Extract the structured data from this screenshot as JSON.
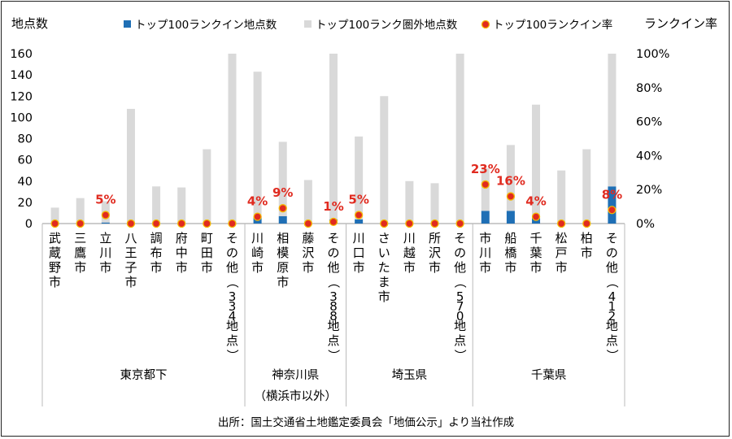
{
  "chart_data": {
    "type": "bar",
    "y_left_label": "地点数",
    "y_right_label": "ランクイン率",
    "y_left_ticks": [
      "0",
      "20",
      "40",
      "60",
      "80",
      "100",
      "120",
      "140",
      "160"
    ],
    "y_right_ticks": [
      "0%",
      "20%",
      "40%",
      "60%",
      "80%",
      "100%"
    ],
    "ylim": [
      0,
      160
    ],
    "y2lim": [
      0,
      1
    ],
    "legend": {
      "position": "top",
      "items": [
        {
          "label": "トップ100ランクイン地点数",
          "color": "#1f6fb5",
          "kind": "square"
        },
        {
          "label": "トップ100ランク圏外地点数",
          "color": "#d9d9d9",
          "kind": "square"
        },
        {
          "label": "トップ100ランクイン率",
          "color": "#e02b20",
          "kind": "dot"
        }
      ]
    },
    "colors": {
      "in": "#1f6fb5",
      "out": "#d9d9d9",
      "rate": "#e02b20",
      "rate_label": "#e02b20"
    },
    "categories": [
      "武蔵野市",
      "三鷹市",
      "立川市",
      "八王子市",
      "調布市",
      "府中市",
      "町田市",
      "その他（334地点）",
      "川崎市",
      "相模原市",
      "藤沢市",
      "その他（388地点）",
      "川口市",
      "さいたま市",
      "川越市",
      "所沢市",
      "その他（570地点）",
      "市川市",
      "船橋市",
      "千葉市",
      "松戸市",
      "柏市",
      "その他（412地点）"
    ],
    "series": [
      {
        "name": "トップ100ランクイン地点数",
        "values": [
          0,
          0,
          1,
          0,
          0,
          0,
          0,
          0,
          6,
          7,
          0,
          4,
          4,
          0,
          0,
          0,
          0,
          12,
          12,
          5,
          0,
          0,
          35
        ]
      },
      {
        "name": "トップ100ランク圏外地点数",
        "values": [
          15,
          24,
          20,
          108,
          35,
          34,
          70,
          160,
          137,
          70,
          41,
          156,
          78,
          120,
          40,
          38,
          160,
          40,
          62,
          107,
          50,
          70,
          125
        ]
      },
      {
        "name": "トップ100ランクイン率",
        "values": [
          0,
          0,
          0.05,
          0,
          0,
          0,
          0,
          0,
          0.04,
          0.09,
          0,
          0.01,
          0.05,
          0,
          0,
          0,
          0,
          0.23,
          0.16,
          0.04,
          0,
          0,
          0.08
        ]
      }
    ],
    "rate_labels": [
      "",
      "",
      "5%",
      "",
      "",
      "",
      "",
      "",
      "4%",
      "9%",
      "",
      "1%",
      "5%",
      "",
      "",
      "",
      "",
      "23%",
      "16%",
      "4%",
      "",
      "",
      "8%"
    ],
    "groups": [
      {
        "name": "東京都下",
        "name2": "",
        "count": 8
      },
      {
        "name": "神奈川県",
        "name2": "（横浜市以外）",
        "count": 4
      },
      {
        "name": "埼玉県",
        "name2": "",
        "count": 5
      },
      {
        "name": "千葉県",
        "name2": "",
        "count": 6
      }
    ]
  },
  "source": "出所：国土交通省土地鑑定委員会「地価公示」より当社作成"
}
